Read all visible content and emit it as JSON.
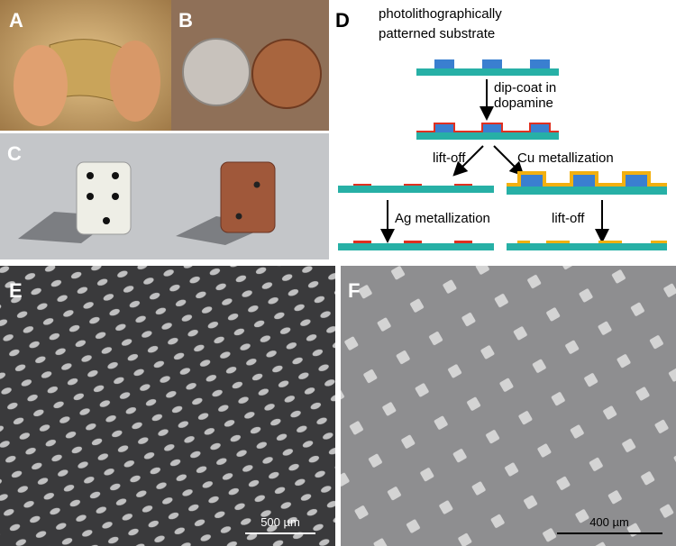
{
  "panel_labels": [
    "A",
    "B",
    "C",
    "D",
    "E",
    "F"
  ],
  "diagram": {
    "title": [
      "photolithographically",
      "patterned substrate"
    ],
    "step_dip": [
      "dip-coat in",
      "dopamine"
    ],
    "left_branch": "lift-off",
    "right_branch": "Cu metallization",
    "left_step": "Ag metallization",
    "right_step": "lift-off"
  },
  "scale_bars": {
    "E": "500 µm",
    "F": "400 µm"
  }
}
